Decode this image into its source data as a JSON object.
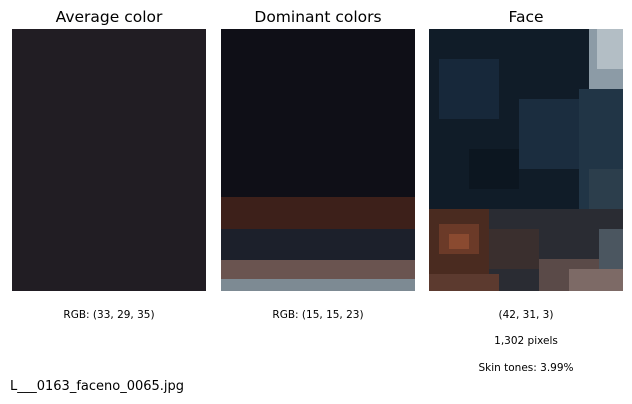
{
  "panels": {
    "average": {
      "title": "Average color",
      "rgb_text": "RGB: (33, 29, 35)",
      "color": "#211d23"
    },
    "dominant": {
      "title": "Dominant colors",
      "rgb_text": "RGB: (15, 15, 23)",
      "swatches": [
        {
          "color": "#0f0f17",
          "share": 0.64
        },
        {
          "color": "#3d201a",
          "share": 0.122
        },
        {
          "color": "#1c202b",
          "share": 0.118
        },
        {
          "color": "#6a5450",
          "share": 0.072
        },
        {
          "color": "#7d8a93",
          "share": 0.048
        }
      ]
    },
    "face": {
      "title": "Face",
      "rgb_text": "(42, 31, 3)",
      "pixels_text": "1,302 pixels",
      "skin_text": "Skin tones: 3.99%"
    }
  },
  "filename": "L___0163_faceno_0065.jpg"
}
